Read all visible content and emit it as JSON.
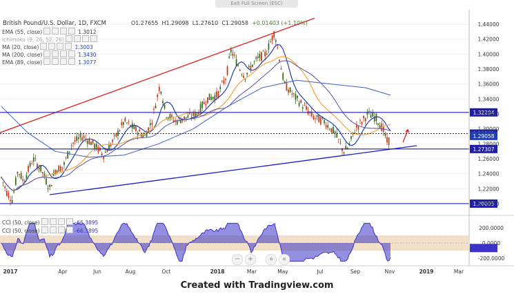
{
  "toolbar": {
    "exit_fullscreen": "Exit Full Screen (ESC)"
  },
  "symbol": {
    "title": "British Pound/U.S. Dollar, 1D, FXCM",
    "open": "O1.27655",
    "high": "H1.29098",
    "low": "L1.27610",
    "close": "C1.29058",
    "change": "+0.01403 (+1.10%)"
  },
  "indicators": [
    {
      "label": "EMA (55, close)",
      "value": "1.3012",
      "color": "#f7a13a"
    },
    {
      "label": "Ichimoku (9, 26, 52, 26)",
      "value": "",
      "color": "#cccccc"
    },
    {
      "label": "MA (20, close)",
      "value": "1.3003",
      "color": "#1f3fb0"
    },
    {
      "label": "MA (200, close)",
      "value": "1.3430",
      "color": "#1f3fb0"
    },
    {
      "label": "EMA (89, close)",
      "value": "1.3077",
      "color": "#1f3fb0"
    }
  ],
  "cci_indicators": [
    {
      "label": "CCI (50, close)",
      "value": "-66.3895"
    },
    {
      "label": "CCI (50, close)",
      "value": "-66.3895"
    }
  ],
  "price_axis": {
    "ticks": [
      "1.44000",
      "1.42000",
      "1.40000",
      "1.38000",
      "1.36000",
      "1.34000",
      "1.32000",
      "1.30000",
      "1.28000",
      "1.26000",
      "1.24000",
      "1.22000",
      "1.20000"
    ],
    "levels": [
      {
        "label": "1.32204",
        "price": 1.32204,
        "color": "#1f1fa8",
        "style": "solid"
      },
      {
        "label": "1.29369",
        "price": 1.29369,
        "color": "#1f1fa8",
        "style": "dashed"
      },
      {
        "label": "1.29058",
        "price": 1.29058,
        "color": "#1f1fa8",
        "style": "none"
      },
      {
        "label": "1.27307",
        "price": 1.27307,
        "color": "#1f1fa8",
        "style": "solid"
      },
      {
        "label": "1.20005",
        "price": 1.20005,
        "color": "#1f1fa8",
        "style": "solid"
      }
    ]
  },
  "cci_axis": {
    "ticks": [
      "200.0000",
      "0.0000",
      "-200.0000"
    ]
  },
  "time_axis": {
    "labels": [
      "2017",
      "Apr",
      "Jun",
      "Aug",
      "Oct",
      "2018",
      "Mar",
      "May",
      "Jul",
      "Sep",
      "Nov",
      "2019",
      "Mar"
    ]
  },
  "nav": {
    "minus": "−",
    "plus": "+",
    "fwd": "»",
    "back": "«"
  },
  "footer": {
    "text": "Created with Tradingview.com"
  },
  "colors": {
    "trend_up": "#e01c1c",
    "trend_support": "#1a1ad0",
    "hline": "#1f1fa8",
    "candle_up": "#3d6b22",
    "candle_down": "#c43b1c",
    "ema55": "#f7a13a",
    "ma20": "#1f3fb0",
    "ma200": "#3f5fbf",
    "cci_fill": "#3b33c9",
    "cci_band": "#f1dfc8"
  }
}
